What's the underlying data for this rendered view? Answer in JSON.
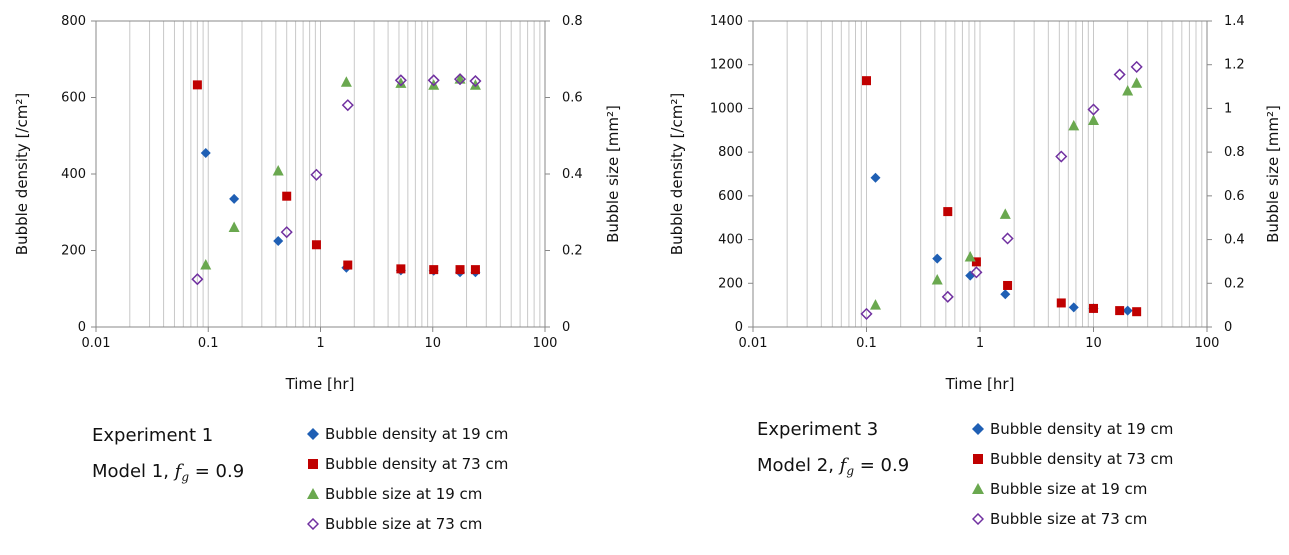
{
  "colors": {
    "density_19": "#1f5fb4",
    "density_73": "#c00000",
    "size_19": "#6aa84f",
    "size_73": "#7030a0",
    "grid": "#c8c8c8",
    "axis": "#888888"
  },
  "legend": {
    "density_19": "Bubble density at 19 cm",
    "density_73": "Bubble density at 73 cm",
    "size_19": "Bubble size at 19 cm",
    "size_73": "Bubble size at 73 cm"
  },
  "panels": [
    {
      "caption_line1": "Experiment 1",
      "caption_line2_prefix": "Model 1, ",
      "caption_fg": "f",
      "caption_fg_sub": "g",
      "caption_line2_suffix": " = 0.9"
    },
    {
      "caption_line1": "Experiment 3",
      "caption_line2_prefix": "Model 2, ",
      "caption_fg": "f",
      "caption_fg_sub": "g",
      "caption_line2_suffix": " = 0.9"
    }
  ],
  "chart_data": [
    {
      "type": "scatter",
      "xlabel": "Time [hr]",
      "ylabel": "Bubble density [/cm²]",
      "y2label": "Bubble size [mm²]",
      "xscale": "log",
      "xlim": [
        0.01,
        100
      ],
      "ylim": [
        0,
        800
      ],
      "y2lim": [
        0,
        0.8
      ],
      "xticks": [
        0.01,
        0.1,
        1,
        10,
        100
      ],
      "xtick_labels": [
        "0.01",
        "0.1",
        "1",
        "10",
        "100"
      ],
      "yticks": [
        0,
        200,
        400,
        600,
        800
      ],
      "ytick_labels": [
        "0",
        "200",
        "400",
        "600",
        "800"
      ],
      "y2ticks": [
        0,
        0.2,
        0.4,
        0.6,
        0.8
      ],
      "y2tick_labels": [
        "0",
        "0.2",
        "0.4",
        "0.6",
        "0.8"
      ],
      "grid": "vertical-log",
      "series": [
        {
          "key": "density_19",
          "name": "Bubble density at 19 cm",
          "marker": "diamond",
          "axis": "left",
          "x": [
            0.095,
            0.17,
            0.42,
            1.7,
            5.2,
            10.2,
            17.5,
            24
          ],
          "y": [
            455,
            335,
            225,
            155,
            148,
            147,
            143,
            143
          ]
        },
        {
          "key": "density_73",
          "name": "Bubble density at 73 cm",
          "marker": "square",
          "axis": "left",
          "x": [
            0.08,
            0.5,
            0.92,
            1.75,
            5.2,
            10.2,
            17.5,
            24
          ],
          "y": [
            633,
            342,
            215,
            162,
            152,
            150,
            150,
            150
          ]
        },
        {
          "key": "size_19",
          "name": "Bubble size at 19 cm",
          "marker": "triangle",
          "axis": "right",
          "x": [
            0.095,
            0.17,
            0.42,
            1.7,
            5.2,
            10.2,
            17.5,
            24
          ],
          "y": [
            0.162,
            0.26,
            0.408,
            0.64,
            0.637,
            0.632,
            0.648,
            0.632
          ]
        },
        {
          "key": "size_73",
          "name": "Bubble size at 73 cm",
          "marker": "open-diamond",
          "axis": "right",
          "x": [
            0.08,
            0.5,
            0.92,
            1.75,
            5.2,
            10.2,
            17.5,
            24
          ],
          "y": [
            0.125,
            0.248,
            0.398,
            0.58,
            0.645,
            0.645,
            0.648,
            0.643
          ]
        }
      ]
    },
    {
      "type": "scatter",
      "xlabel": "Time [hr]",
      "ylabel": "Bubble density [/cm²]",
      "y2label": "Bubble size [mm²]",
      "xscale": "log",
      "xlim": [
        0.01,
        100
      ],
      "ylim": [
        0,
        1400
      ],
      "y2lim": [
        0,
        1.4
      ],
      "xticks": [
        0.01,
        0.1,
        1,
        10,
        100
      ],
      "xtick_labels": [
        "0.01",
        "0.1",
        "1",
        "10",
        "100"
      ],
      "yticks": [
        0,
        200,
        400,
        600,
        800,
        1000,
        1200,
        1400
      ],
      "ytick_labels": [
        "0",
        "200",
        "400",
        "600",
        "800",
        "1000",
        "1200",
        "1400"
      ],
      "y2ticks": [
        0,
        0.2,
        0.4,
        0.6,
        0.8,
        1,
        1.2,
        1.4
      ],
      "y2tick_labels": [
        "0",
        "0.2",
        "0.4",
        "0.6",
        "0.8",
        "1",
        "1.2",
        "1.4"
      ],
      "grid": "vertical-log",
      "series": [
        {
          "key": "density_19",
          "name": "Bubble density at 19 cm",
          "marker": "diamond",
          "axis": "left",
          "x": [
            0.12,
            0.42,
            0.82,
            1.67,
            6.7,
            10,
            20
          ],
          "y": [
            683,
            313,
            235,
            150,
            90,
            85,
            75
          ]
        },
        {
          "key": "density_73",
          "name": "Bubble density at 73 cm",
          "marker": "square",
          "axis": "left",
          "x": [
            0.1,
            0.52,
            0.93,
            1.75,
            5.2,
            10,
            17,
            24
          ],
          "y": [
            1127,
            528,
            298,
            190,
            110,
            85,
            75,
            70
          ]
        },
        {
          "key": "size_19",
          "name": "Bubble size at 19 cm",
          "marker": "triangle",
          "axis": "right",
          "x": [
            0.12,
            0.42,
            0.82,
            1.67,
            6.7,
            10,
            20,
            24
          ],
          "y": [
            0.1,
            0.215,
            0.32,
            0.515,
            0.92,
            0.945,
            1.08,
            1.115
          ]
        },
        {
          "key": "size_73",
          "name": "Bubble size at 73 cm",
          "marker": "open-diamond",
          "axis": "right",
          "x": [
            0.1,
            0.52,
            0.93,
            1.75,
            5.2,
            10,
            17,
            24
          ],
          "y": [
            0.06,
            0.138,
            0.25,
            0.405,
            0.78,
            0.995,
            1.155,
            1.19
          ]
        }
      ]
    }
  ]
}
